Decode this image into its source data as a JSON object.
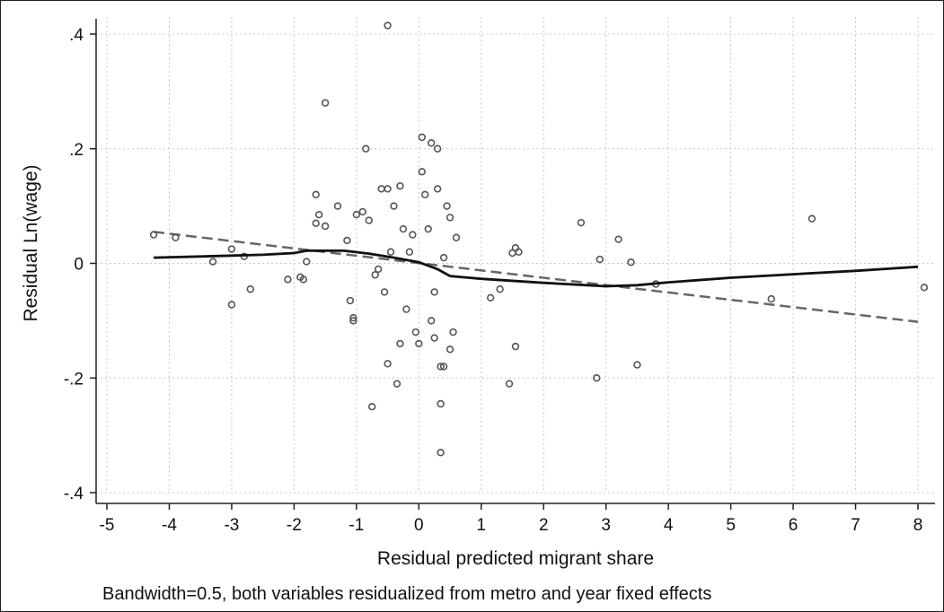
{
  "chart_data": {
    "type": "scatter",
    "title": "",
    "xlabel": "Residual predicted migrant share",
    "ylabel": "Residual Ln(wage)",
    "note": "Bandwidth=0.5, both variables residualized from metro and year fixed effects",
    "xlim": [
      -5,
      8
    ],
    "ylim": [
      -0.4,
      0.4
    ],
    "x_ticks": [
      -5,
      -4,
      -3,
      -2,
      -1,
      0,
      1,
      2,
      3,
      4,
      5,
      6,
      7,
      8
    ],
    "x_tick_labels": [
      "-5",
      "-4",
      "-3",
      "-2",
      "-1",
      "0",
      "1",
      "2",
      "3",
      "4",
      "5",
      "6",
      "7",
      "8"
    ],
    "y_ticks": [
      -0.4,
      -0.2,
      0,
      0.2,
      0.4
    ],
    "y_tick_labels": [
      "-.4",
      "-.2",
      "0",
      ".2",
      ".4"
    ],
    "grid": true,
    "points": [
      {
        "x": -4.25,
        "y": 0.05
      },
      {
        "x": -3.9,
        "y": 0.045
      },
      {
        "x": -3.3,
        "y": 0.003
      },
      {
        "x": -3.0,
        "y": 0.025
      },
      {
        "x": -3.0,
        "y": -0.072
      },
      {
        "x": -2.8,
        "y": 0.012
      },
      {
        "x": -2.7,
        "y": -0.045
      },
      {
        "x": -2.1,
        "y": -0.028
      },
      {
        "x": -1.9,
        "y": -0.024
      },
      {
        "x": -1.85,
        "y": -0.028
      },
      {
        "x": -1.8,
        "y": 0.003
      },
      {
        "x": -1.65,
        "y": 0.12
      },
      {
        "x": -1.65,
        "y": 0.07
      },
      {
        "x": -1.6,
        "y": 0.085
      },
      {
        "x": -1.5,
        "y": 0.28
      },
      {
        "x": -1.5,
        "y": 0.065
      },
      {
        "x": -1.3,
        "y": 0.1
      },
      {
        "x": -1.15,
        "y": 0.04
      },
      {
        "x": -1.1,
        "y": -0.065
      },
      {
        "x": -1.05,
        "y": -0.095
      },
      {
        "x": -1.05,
        "y": -0.1
      },
      {
        "x": -1.0,
        "y": 0.085
      },
      {
        "x": -0.9,
        "y": 0.09
      },
      {
        "x": -0.85,
        "y": 0.2
      },
      {
        "x": -0.8,
        "y": 0.075
      },
      {
        "x": -0.75,
        "y": -0.25
      },
      {
        "x": -0.7,
        "y": -0.02
      },
      {
        "x": -0.6,
        "y": 0.13
      },
      {
        "x": -0.55,
        "y": -0.05
      },
      {
        "x": -0.5,
        "y": 0.415
      },
      {
        "x": -0.5,
        "y": -0.175
      },
      {
        "x": -0.5,
        "y": 0.13
      },
      {
        "x": -0.4,
        "y": 0.1
      },
      {
        "x": -0.35,
        "y": -0.21
      },
      {
        "x": -0.3,
        "y": -0.14
      },
      {
        "x": -0.3,
        "y": 0.135
      },
      {
        "x": -0.25,
        "y": 0.06
      },
      {
        "x": -0.2,
        "y": -0.08
      },
      {
        "x": -0.1,
        "y": 0.05
      },
      {
        "x": -0.05,
        "y": -0.12
      },
      {
        "x": 0.0,
        "y": -0.14
      },
      {
        "x": 0.05,
        "y": 0.22
      },
      {
        "x": 0.05,
        "y": 0.16
      },
      {
        "x": 0.1,
        "y": 0.12
      },
      {
        "x": 0.15,
        "y": 0.06
      },
      {
        "x": 0.2,
        "y": 0.21
      },
      {
        "x": 0.2,
        "y": -0.1
      },
      {
        "x": 0.25,
        "y": -0.13
      },
      {
        "x": 0.3,
        "y": 0.2
      },
      {
        "x": 0.3,
        "y": 0.13
      },
      {
        "x": 0.35,
        "y": -0.245
      },
      {
        "x": 0.35,
        "y": -0.33
      },
      {
        "x": 0.35,
        "y": -0.18
      },
      {
        "x": 0.4,
        "y": -0.18
      },
      {
        "x": 0.45,
        "y": 0.1
      },
      {
        "x": 0.5,
        "y": -0.15
      },
      {
        "x": 0.55,
        "y": -0.12
      },
      {
        "x": 0.6,
        "y": 0.045
      },
      {
        "x": 0.5,
        "y": 0.08
      },
      {
        "x": -0.15,
        "y": 0.02
      },
      {
        "x": -0.45,
        "y": 0.02
      },
      {
        "x": -0.65,
        "y": -0.01
      },
      {
        "x": 0.25,
        "y": -0.05
      },
      {
        "x": 0.4,
        "y": 0.01
      },
      {
        "x": 1.15,
        "y": -0.06
      },
      {
        "x": 1.3,
        "y": -0.045
      },
      {
        "x": 1.45,
        "y": -0.21
      },
      {
        "x": 1.5,
        "y": 0.018
      },
      {
        "x": 1.55,
        "y": 0.027
      },
      {
        "x": 1.55,
        "y": -0.145
      },
      {
        "x": 1.6,
        "y": 0.02
      },
      {
        "x": 2.6,
        "y": 0.071
      },
      {
        "x": 2.85,
        "y": -0.2
      },
      {
        "x": 2.9,
        "y": 0.007
      },
      {
        "x": 3.2,
        "y": 0.042
      },
      {
        "x": 3.4,
        "y": 0.002
      },
      {
        "x": 3.5,
        "y": -0.177
      },
      {
        "x": 3.8,
        "y": -0.036
      },
      {
        "x": 5.65,
        "y": -0.062
      },
      {
        "x": 6.3,
        "y": 0.078
      },
      {
        "x": 8.1,
        "y": -0.042
      }
    ],
    "smooth_line": [
      {
        "x": -4.25,
        "y": 0.01
      },
      {
        "x": -3.5,
        "y": 0.012
      },
      {
        "x": -2.5,
        "y": 0.015
      },
      {
        "x": -2.0,
        "y": 0.018
      },
      {
        "x": -1.8,
        "y": 0.022
      },
      {
        "x": -1.2,
        "y": 0.022
      },
      {
        "x": -0.8,
        "y": 0.017
      },
      {
        "x": -0.4,
        "y": 0.01
      },
      {
        "x": 0.0,
        "y": 0.002
      },
      {
        "x": 0.3,
        "y": -0.01
      },
      {
        "x": 0.5,
        "y": -0.022
      },
      {
        "x": 1.0,
        "y": -0.027
      },
      {
        "x": 2.0,
        "y": -0.034
      },
      {
        "x": 3.0,
        "y": -0.04
      },
      {
        "x": 3.5,
        "y": -0.038
      },
      {
        "x": 4.0,
        "y": -0.033
      },
      {
        "x": 5.0,
        "y": -0.025
      },
      {
        "x": 6.0,
        "y": -0.019
      },
      {
        "x": 7.0,
        "y": -0.013
      },
      {
        "x": 8.0,
        "y": -0.006
      }
    ],
    "fit_line": [
      {
        "x": -4.25,
        "y": 0.055
      },
      {
        "x": 8.0,
        "y": -0.102
      }
    ]
  }
}
